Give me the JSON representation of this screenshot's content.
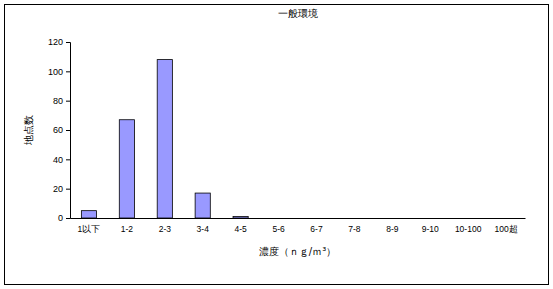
{
  "chart_data": {
    "type": "bar",
    "title": "一般環境",
    "x_label": "濃度（ｎｇ/ｍ³）",
    "y_label": "地点数",
    "categories": [
      "1以下",
      "1-2",
      "2-3",
      "3-4",
      "4-5",
      "5-6",
      "6-7",
      "7-8",
      "8-9",
      "9-10",
      "10-100",
      "100超"
    ],
    "values": [
      5,
      67,
      108,
      17,
      1,
      0,
      0,
      0,
      0,
      0,
      0,
      0
    ],
    "color": "#9999ff",
    "ylim": [
      0,
      120
    ],
    "yticks": [
      0,
      20,
      40,
      60,
      80,
      100,
      120
    ],
    "grid": false
  }
}
